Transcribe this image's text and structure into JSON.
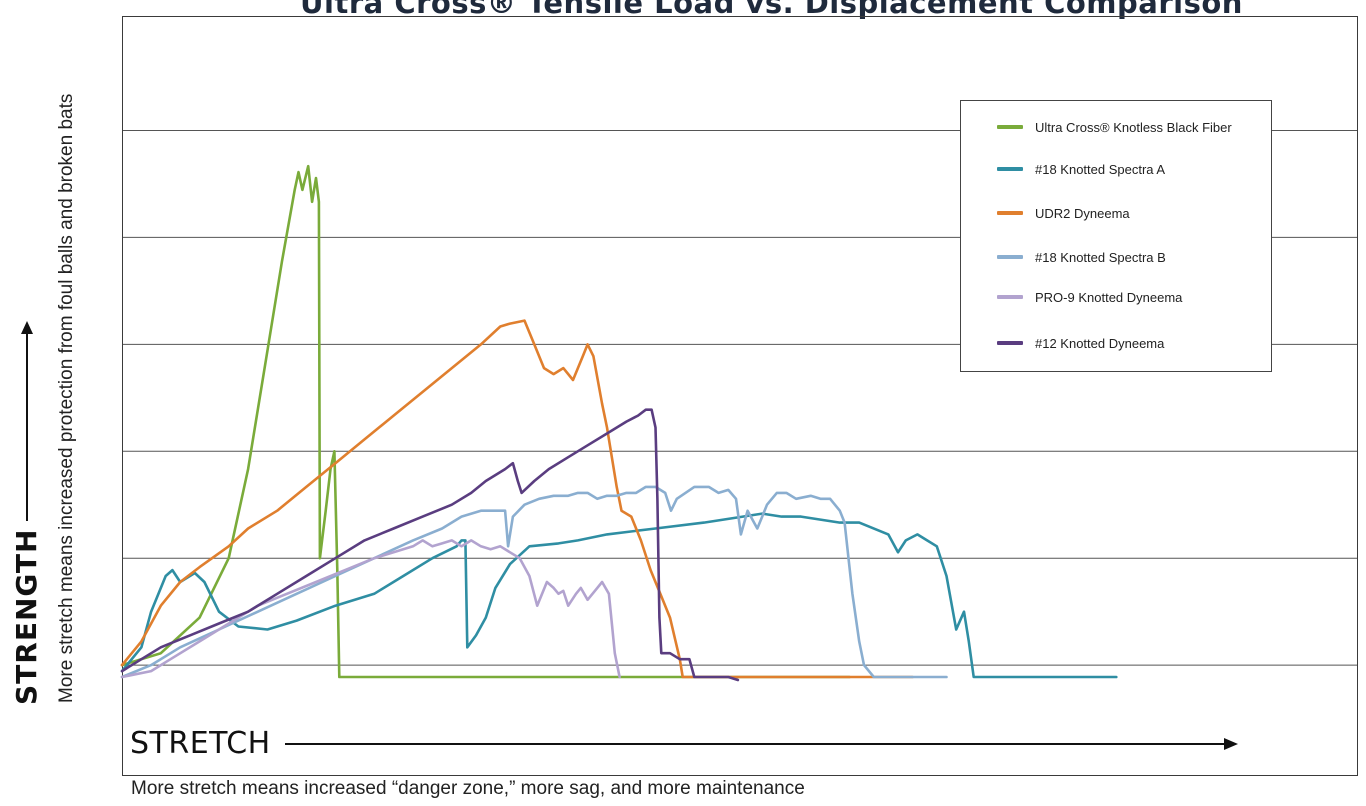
{
  "chart_data": {
    "type": "line",
    "title": "Ultra Cross® Tensile Load vs. Displacement Comparison",
    "ylabel": "STRENGTH",
    "ylabel_subtitle": "More stretch means increased protection from foul balls and broken bats",
    "xlabel": "STRETCH",
    "xlabel_subtitle": "More stretch means increased “danger zone,” more sag, and more maintenance",
    "xlim": [
      0,
      100
    ],
    "ylim": [
      0,
      100
    ],
    "grid": true,
    "legend_position": "top-right",
    "series": [
      {
        "name": "Ultra Cross® Knotless Black Fiber",
        "color": "#7aab3a",
        "points": [
          [
            0,
            2
          ],
          [
            4,
            4
          ],
          [
            8,
            10
          ],
          [
            11,
            20
          ],
          [
            13,
            35
          ],
          [
            15,
            55
          ],
          [
            16.5,
            70
          ],
          [
            17.8,
            82
          ],
          [
            18.2,
            85
          ],
          [
            18.6,
            82
          ],
          [
            19.2,
            86
          ],
          [
            19.6,
            80
          ],
          [
            20,
            84
          ],
          [
            20.3,
            80
          ],
          [
            20.4,
            20
          ],
          [
            21,
            28
          ],
          [
            21.5,
            35
          ],
          [
            21.9,
            38
          ],
          [
            22.2,
            18
          ],
          [
            22.4,
            0
          ],
          [
            30,
            0
          ],
          [
            45,
            0
          ],
          [
            60,
            0
          ],
          [
            70,
            0
          ],
          [
            75,
            0
          ]
        ]
      },
      {
        "name": "#18 Knotted Spectra A",
        "color": "#2f8ea3",
        "points": [
          [
            0,
            1
          ],
          [
            2,
            5
          ],
          [
            3,
            11
          ],
          [
            4.5,
            17
          ],
          [
            5.2,
            18
          ],
          [
            6,
            16
          ],
          [
            7.5,
            17.5
          ],
          [
            8.5,
            16
          ],
          [
            10,
            11
          ],
          [
            12,
            8.5
          ],
          [
            15,
            8
          ],
          [
            18,
            9.5
          ],
          [
            22,
            12
          ],
          [
            26,
            14
          ],
          [
            29,
            17
          ],
          [
            32,
            20
          ],
          [
            34.5,
            22
          ],
          [
            35,
            23
          ],
          [
            35.4,
            23
          ],
          [
            35.6,
            5
          ],
          [
            36.5,
            7
          ],
          [
            37.5,
            10
          ],
          [
            38.5,
            15
          ],
          [
            40,
            19
          ],
          [
            42,
            22
          ],
          [
            45,
            22.5
          ],
          [
            47,
            23
          ],
          [
            50,
            24
          ],
          [
            55,
            25
          ],
          [
            60,
            26
          ],
          [
            62,
            26.5
          ],
          [
            66,
            27.5
          ],
          [
            68,
            27
          ],
          [
            70,
            27
          ],
          [
            74,
            26
          ],
          [
            76,
            26
          ],
          [
            79,
            24
          ],
          [
            80,
            21
          ],
          [
            80.8,
            23
          ],
          [
            82,
            24
          ],
          [
            83,
            23
          ],
          [
            84,
            22
          ],
          [
            85,
            17
          ],
          [
            86,
            8
          ],
          [
            86.8,
            11
          ],
          [
            87.3,
            6
          ],
          [
            87.8,
            0
          ],
          [
            92,
            0
          ],
          [
            100,
            0
          ],
          [
            102.5,
            0
          ]
        ]
      },
      {
        "name": "UDR2 Dyneema",
        "color": "#e07f2e",
        "points": [
          [
            0,
            2
          ],
          [
            2,
            6
          ],
          [
            4,
            12
          ],
          [
            6,
            16
          ],
          [
            8,
            18.5
          ],
          [
            11,
            22
          ],
          [
            13,
            25
          ],
          [
            16,
            28
          ],
          [
            19,
            32
          ],
          [
            22,
            36
          ],
          [
            25,
            40
          ],
          [
            28,
            44
          ],
          [
            31,
            48
          ],
          [
            34,
            52
          ],
          [
            37,
            56
          ],
          [
            39,
            59
          ],
          [
            40,
            59.5
          ],
          [
            41.5,
            60
          ],
          [
            42.5,
            56
          ],
          [
            43.5,
            52
          ],
          [
            44.5,
            51
          ],
          [
            45.5,
            52
          ],
          [
            46.5,
            50
          ],
          [
            47.5,
            54
          ],
          [
            48,
            56
          ],
          [
            48.6,
            54
          ],
          [
            49.5,
            46
          ],
          [
            50,
            42
          ],
          [
            51,
            32
          ],
          [
            51.5,
            28
          ],
          [
            52.5,
            27
          ],
          [
            53.5,
            23
          ],
          [
            54.5,
            18
          ],
          [
            55.5,
            14
          ],
          [
            56.5,
            10
          ],
          [
            57.5,
            3
          ],
          [
            57.8,
            0
          ],
          [
            65,
            0
          ],
          [
            75,
            0
          ],
          [
            80,
            0
          ],
          [
            81.5,
            0
          ]
        ]
      },
      {
        "name": "#18 Knotted Spectra B",
        "color": "#8aaed0",
        "points": [
          [
            0,
            0
          ],
          [
            3,
            2
          ],
          [
            6,
            5
          ],
          [
            10,
            8
          ],
          [
            14,
            11
          ],
          [
            18,
            14
          ],
          [
            22,
            17
          ],
          [
            26,
            20
          ],
          [
            30,
            23
          ],
          [
            33,
            25
          ],
          [
            35,
            27
          ],
          [
            37,
            28
          ],
          [
            39.5,
            28
          ],
          [
            39.8,
            22
          ],
          [
            40.3,
            27
          ],
          [
            41.5,
            29
          ],
          [
            43,
            30
          ],
          [
            44.5,
            30.5
          ],
          [
            46,
            30.5
          ],
          [
            47,
            31
          ],
          [
            48,
            31
          ],
          [
            49,
            30
          ],
          [
            50,
            30.5
          ],
          [
            51,
            30.5
          ],
          [
            52,
            31
          ],
          [
            53,
            31
          ],
          [
            54,
            32
          ],
          [
            55,
            32
          ],
          [
            56,
            31
          ],
          [
            56.6,
            28
          ],
          [
            57.2,
            30
          ],
          [
            59,
            32
          ],
          [
            60.5,
            32
          ],
          [
            61.5,
            31
          ],
          [
            62.5,
            31.5
          ],
          [
            63.3,
            30
          ],
          [
            63.8,
            24
          ],
          [
            64.5,
            28
          ],
          [
            65.5,
            25
          ],
          [
            66,
            27
          ],
          [
            66.5,
            29
          ],
          [
            67.5,
            31
          ],
          [
            68.5,
            31
          ],
          [
            69.5,
            30
          ],
          [
            71,
            30.5
          ],
          [
            72,
            30
          ],
          [
            73,
            30
          ],
          [
            74,
            28
          ],
          [
            74.5,
            26
          ],
          [
            75.3,
            14
          ],
          [
            76,
            6
          ],
          [
            76.5,
            2
          ],
          [
            77.5,
            0
          ],
          [
            80,
            0
          ],
          [
            85,
            0
          ]
        ]
      },
      {
        "name": "PRO-9 Knotted Dyneema",
        "color": "#b2a3cf",
        "points": [
          [
            0,
            0
          ],
          [
            3,
            1
          ],
          [
            5,
            3
          ],
          [
            8,
            6
          ],
          [
            11,
            9
          ],
          [
            14,
            12
          ],
          [
            17,
            14
          ],
          [
            20,
            16
          ],
          [
            23,
            18
          ],
          [
            26,
            20
          ],
          [
            28,
            21
          ],
          [
            30,
            22
          ],
          [
            31,
            23
          ],
          [
            32,
            22
          ],
          [
            33,
            22.5
          ],
          [
            34,
            23
          ],
          [
            35,
            22
          ],
          [
            36,
            23
          ],
          [
            37,
            22
          ],
          [
            38,
            21.5
          ],
          [
            39,
            22
          ],
          [
            40,
            21
          ],
          [
            41,
            20
          ],
          [
            42,
            17
          ],
          [
            42.8,
            12
          ],
          [
            43.8,
            16
          ],
          [
            44.5,
            15
          ],
          [
            45,
            14
          ],
          [
            45.5,
            14.5
          ],
          [
            46,
            12
          ],
          [
            46.8,
            14
          ],
          [
            47.3,
            15
          ],
          [
            48,
            13
          ],
          [
            49,
            15
          ],
          [
            49.5,
            16
          ],
          [
            50.2,
            14
          ],
          [
            50.8,
            4
          ],
          [
            51.3,
            0
          ]
        ]
      },
      {
        "name": "#12 Knotted Dyneema",
        "color": "#5a3d80",
        "points": [
          [
            0,
            1
          ],
          [
            2,
            3
          ],
          [
            4,
            5
          ],
          [
            7,
            7
          ],
          [
            10,
            9
          ],
          [
            13,
            11
          ],
          [
            16,
            14
          ],
          [
            19,
            17
          ],
          [
            22,
            20
          ],
          [
            25,
            23
          ],
          [
            28,
            25
          ],
          [
            31,
            27
          ],
          [
            34,
            29
          ],
          [
            36,
            31
          ],
          [
            37.5,
            33
          ],
          [
            39.5,
            35
          ],
          [
            40.3,
            36
          ],
          [
            40.8,
            33
          ],
          [
            41.2,
            31
          ],
          [
            42.5,
            33
          ],
          [
            44,
            35
          ],
          [
            46,
            37
          ],
          [
            48,
            39
          ],
          [
            50,
            41
          ],
          [
            52,
            43
          ],
          [
            53.2,
            44
          ],
          [
            54,
            45
          ],
          [
            54.6,
            45
          ],
          [
            55,
            42
          ],
          [
            55.2,
            30
          ],
          [
            55.4,
            10
          ],
          [
            55.6,
            4
          ],
          [
            56.5,
            4
          ],
          [
            57.5,
            3
          ],
          [
            58.5,
            3
          ],
          [
            59,
            0
          ],
          [
            61,
            0
          ],
          [
            62.5,
            0
          ],
          [
            63.5,
            -0.5
          ]
        ]
      }
    ]
  }
}
